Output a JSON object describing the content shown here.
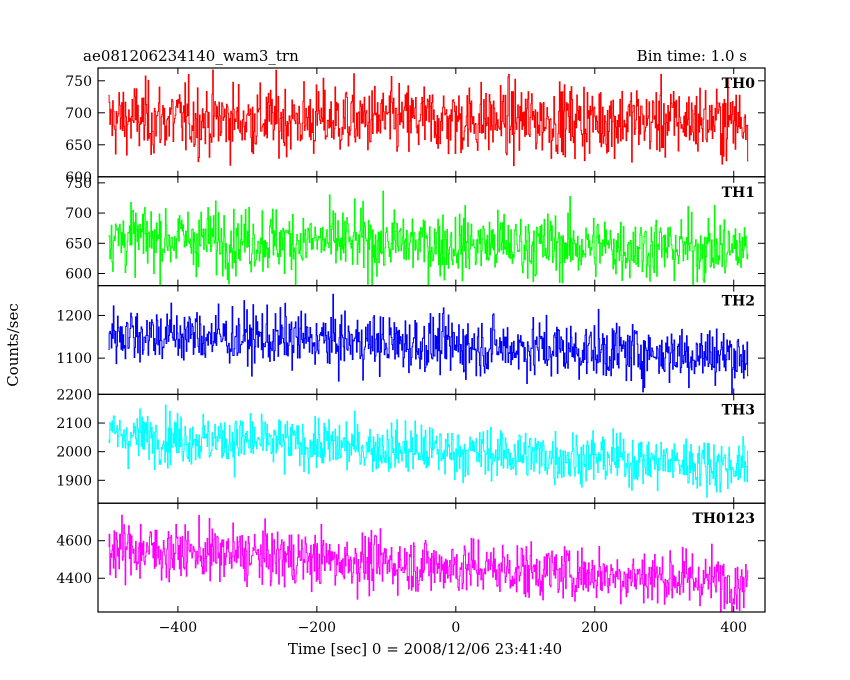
{
  "header": {
    "title": "ae081206234140_wam3_trn",
    "bin_time": "Bin time: 1.0 s"
  },
  "chart_data": {
    "type": "line",
    "xlabel": "Time [sec] 0 = 2008/12/06 23:41:40",
    "ylabel": "Counts/sec",
    "xlim": [
      -515,
      445
    ],
    "x_ticks": [
      -400,
      -200,
      0,
      200,
      400
    ],
    "x_start": -500,
    "x_end": 420,
    "x_step": 1,
    "panels": [
      {
        "name": "TH0",
        "color": "#ff0000",
        "ylim": [
          600,
          770
        ],
        "y_ticks": [
          600,
          650,
          700,
          750
        ],
        "trend_start": 690,
        "trend_end": 688,
        "noise_sd": 28
      },
      {
        "name": "TH1",
        "color": "#00ff00",
        "ylim": [
          580,
          760
        ],
        "y_ticks": [
          600,
          650,
          700,
          750
        ],
        "trend_start": 660,
        "trend_end": 640,
        "noise_sd": 27
      },
      {
        "name": "TH2",
        "color": "#0000ff",
        "ylim": [
          1015,
          1270
        ],
        "y_ticks": [
          1100,
          1200
        ],
        "trend_start": 1160,
        "trend_end": 1105,
        "noise_sd": 34
      },
      {
        "name": "TH3",
        "color": "#00ffff",
        "ylim": [
          1820,
          2200
        ],
        "y_ticks": [
          1900,
          2000,
          2100,
          2200
        ],
        "trend_start": 2060,
        "trend_end": 1950,
        "noise_sd": 45
      },
      {
        "name": "TH0123",
        "color": "#ff00ff",
        "ylim": [
          4220,
          4800
        ],
        "y_ticks": [
          4400,
          4600
        ],
        "trend_start": 4560,
        "trend_end": 4380,
        "noise_sd": 75
      }
    ]
  }
}
